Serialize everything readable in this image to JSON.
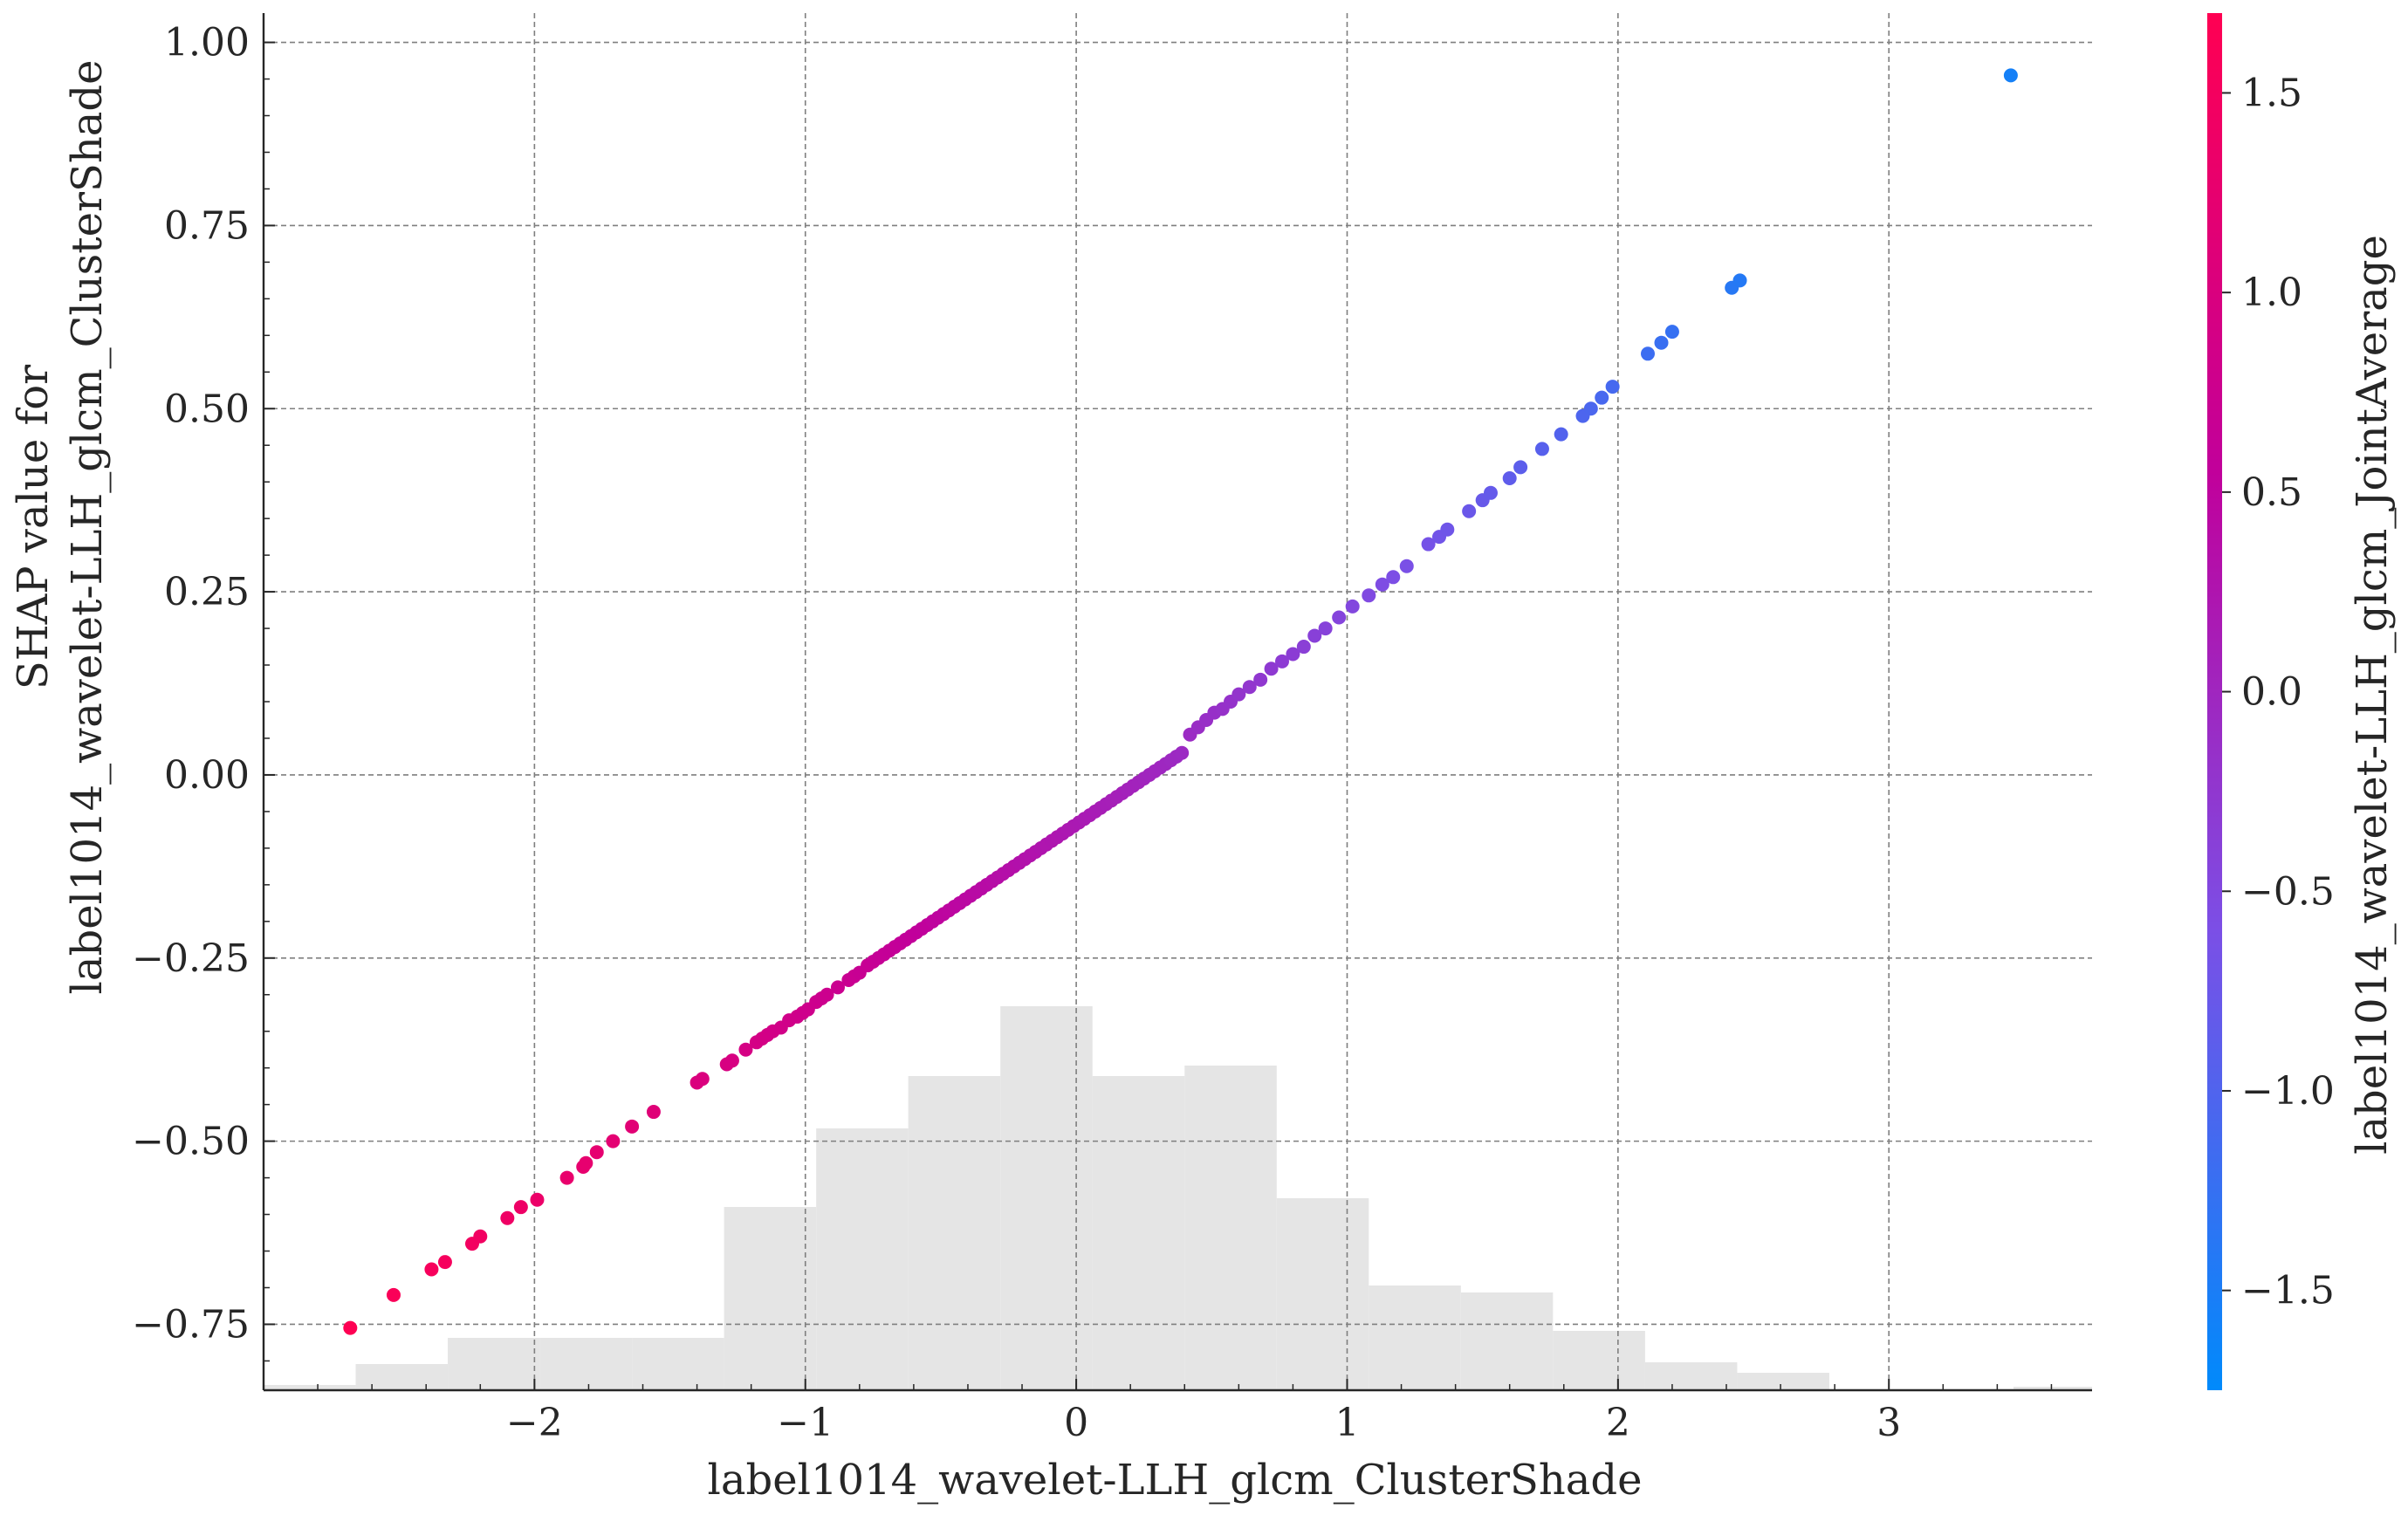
{
  "chart_data": {
    "type": "scatter",
    "xlabel": "label1014_wavelet-LLH_glcm_ClusterShade",
    "ylabel_lines": [
      "SHAP value for",
      "label1014_wavelet-LLH_glcm_ClusterShade"
    ],
    "colorbar_label": "label1014_wavelet-LLH_glcm_JointAverage",
    "xlim": [
      -3.0,
      3.75
    ],
    "ylim": [
      -0.84,
      1.04
    ],
    "x_ticks": [
      -2,
      -1,
      0,
      1,
      2,
      3
    ],
    "x_tick_labels": [
      "−2",
      "−1",
      "0",
      "1",
      "2",
      "3"
    ],
    "y_ticks": [
      1.0,
      0.75,
      0.5,
      0.25,
      0.0,
      -0.25,
      -0.5,
      -0.75
    ],
    "y_tick_labels": [
      "1.00",
      "0.75",
      "0.50",
      "0.25",
      "0.00",
      "−0.25",
      "−0.50",
      "−0.75"
    ],
    "grid": true,
    "colorbar": {
      "range": [
        -1.75,
        1.7
      ],
      "ticks": [
        1.5,
        1.0,
        0.5,
        0.0,
        -0.5,
        -1.0,
        -1.5
      ],
      "tick_labels": [
        "1.5",
        "1.0",
        "0.5",
        "0.0",
        "−0.5",
        "−1.0",
        "−1.5"
      ],
      "colormap": [
        "#008afb",
        "#7b4fe6",
        "#c1009b",
        "#ff0052"
      ]
    },
    "histogram": {
      "bin_edges": [
        -3.0,
        -2.66,
        -2.32,
        -1.98,
        -1.64,
        -1.3,
        -0.96,
        -0.62,
        -0.28,
        0.06,
        0.4,
        0.74,
        1.08,
        1.42,
        1.76,
        2.1,
        2.44,
        2.78,
        3.12,
        3.46,
        3.75
      ],
      "counts": [
        0.3,
        1.5,
        3.0,
        3.0,
        3.0,
        10.5,
        15.0,
        18.0,
        22.0,
        18.0,
        18.6,
        11.0,
        6.0,
        5.6,
        3.4,
        1.6,
        1.0,
        0.0,
        0.0,
        0.2
      ],
      "max_count": 22.0,
      "color": "#e5e5e5"
    },
    "points_x": [
      -2.68,
      -2.52,
      -2.38,
      -2.33,
      -2.23,
      -2.2,
      -2.1,
      -2.05,
      -1.99,
      -1.88,
      -1.82,
      -1.81,
      -1.77,
      -1.71,
      -1.64,
      -1.56,
      -1.4,
      -1.38,
      -1.29,
      -1.27,
      -1.22,
      -1.18,
      -1.16,
      -1.14,
      -1.12,
      -1.09,
      -1.06,
      -1.03,
      -1.01,
      -0.99,
      -0.96,
      -0.94,
      -0.92,
      -0.88,
      -0.84,
      -0.82,
      -0.8,
      -0.77,
      -0.75,
      -0.73,
      -0.71,
      -0.69,
      -0.67,
      -0.65,
      -0.63,
      -0.61,
      -0.59,
      -0.57,
      -0.55,
      -0.53,
      -0.51,
      -0.49,
      -0.47,
      -0.45,
      -0.43,
      -0.41,
      -0.39,
      -0.37,
      -0.35,
      -0.33,
      -0.31,
      -0.29,
      -0.27,
      -0.25,
      -0.23,
      -0.21,
      -0.19,
      -0.17,
      -0.15,
      -0.13,
      -0.11,
      -0.09,
      -0.07,
      -0.05,
      -0.03,
      -0.01,
      0.01,
      0.03,
      0.05,
      0.07,
      0.09,
      0.11,
      0.13,
      0.15,
      0.17,
      0.19,
      0.21,
      0.23,
      0.25,
      0.27,
      0.29,
      0.31,
      0.33,
      0.35,
      0.37,
      0.39,
      0.42,
      0.45,
      0.48,
      0.51,
      0.54,
      0.57,
      0.6,
      0.64,
      0.68,
      0.72,
      0.76,
      0.8,
      0.84,
      0.88,
      0.92,
      0.97,
      1.02,
      1.08,
      1.13,
      1.17,
      1.22,
      1.3,
      1.34,
      1.37,
      1.45,
      1.5,
      1.53,
      1.6,
      1.64,
      1.72,
      1.79,
      1.87,
      1.9,
      1.94,
      1.98,
      2.11,
      2.16,
      2.2,
      2.42,
      2.45,
      3.45
    ],
    "points_y": [
      -0.755,
      -0.71,
      -0.675,
      -0.665,
      -0.64,
      -0.63,
      -0.605,
      -0.59,
      -0.58,
      -0.55,
      -0.535,
      -0.53,
      -0.515,
      -0.5,
      -0.48,
      -0.46,
      -0.42,
      -0.415,
      -0.395,
      -0.39,
      -0.375,
      -0.365,
      -0.36,
      -0.355,
      -0.35,
      -0.345,
      -0.335,
      -0.33,
      -0.325,
      -0.32,
      -0.31,
      -0.305,
      -0.3,
      -0.29,
      -0.28,
      -0.275,
      -0.27,
      -0.26,
      -0.255,
      -0.25,
      -0.245,
      -0.24,
      -0.235,
      -0.23,
      -0.225,
      -0.22,
      -0.215,
      -0.21,
      -0.205,
      -0.2,
      -0.195,
      -0.19,
      -0.185,
      -0.18,
      -0.175,
      -0.17,
      -0.165,
      -0.16,
      -0.155,
      -0.15,
      -0.145,
      -0.14,
      -0.135,
      -0.13,
      -0.125,
      -0.12,
      -0.115,
      -0.11,
      -0.105,
      -0.1,
      -0.095,
      -0.09,
      -0.085,
      -0.08,
      -0.075,
      -0.07,
      -0.065,
      -0.06,
      -0.055,
      -0.05,
      -0.045,
      -0.04,
      -0.035,
      -0.03,
      -0.025,
      -0.02,
      -0.015,
      -0.01,
      -0.005,
      0.0,
      0.005,
      0.01,
      0.015,
      0.02,
      0.025,
      0.03,
      0.055,
      0.065,
      0.075,
      0.085,
      0.09,
      0.1,
      0.11,
      0.12,
      0.13,
      0.145,
      0.155,
      0.165,
      0.175,
      0.19,
      0.2,
      0.215,
      0.23,
      0.245,
      0.26,
      0.27,
      0.285,
      0.315,
      0.325,
      0.335,
      0.36,
      0.375,
      0.385,
      0.405,
      0.42,
      0.445,
      0.465,
      0.49,
      0.5,
      0.515,
      0.53,
      0.575,
      0.59,
      0.605,
      0.665,
      0.675,
      0.955
    ],
    "points_color": [
      1.68,
      1.6,
      1.55,
      1.53,
      1.48,
      1.46,
      1.41,
      1.38,
      1.35,
      1.29,
      1.26,
      1.25,
      1.23,
      1.19,
      1.15,
      1.11,
      1.02,
      1.01,
      0.96,
      0.95,
      0.92,
      0.9,
      0.89,
      0.88,
      0.86,
      0.85,
      0.83,
      0.81,
      0.8,
      0.79,
      0.77,
      0.76,
      0.75,
      0.72,
      0.7,
      0.69,
      0.67,
      0.66,
      0.65,
      0.63,
      0.62,
      0.61,
      0.6,
      0.58,
      0.57,
      0.56,
      0.55,
      0.54,
      0.53,
      0.51,
      0.5,
      0.49,
      0.48,
      0.46,
      0.45,
      0.44,
      0.43,
      0.41,
      0.4,
      0.39,
      0.38,
      0.36,
      0.35,
      0.34,
      0.33,
      0.31,
      0.3,
      0.29,
      0.28,
      0.26,
      0.25,
      0.24,
      0.23,
      0.21,
      0.2,
      0.19,
      0.18,
      0.16,
      0.15,
      0.14,
      0.13,
      0.11,
      0.1,
      0.09,
      0.08,
      0.06,
      0.05,
      0.04,
      0.03,
      0.01,
      0.0,
      -0.01,
      -0.02,
      -0.04,
      -0.05,
      -0.06,
      -0.08,
      -0.1,
      -0.12,
      -0.14,
      -0.16,
      -0.18,
      -0.2,
      -0.23,
      -0.25,
      -0.28,
      -0.31,
      -0.33,
      -0.36,
      -0.38,
      -0.41,
      -0.44,
      -0.48,
      -0.52,
      -0.55,
      -0.58,
      -0.61,
      -0.66,
      -0.69,
      -0.71,
      -0.76,
      -0.79,
      -0.81,
      -0.86,
      -0.89,
      -0.94,
      -0.98,
      -1.03,
      -1.05,
      -1.08,
      -1.1,
      -1.19,
      -1.22,
      -1.25,
      -1.39,
      -1.41,
      -1.55
    ]
  }
}
